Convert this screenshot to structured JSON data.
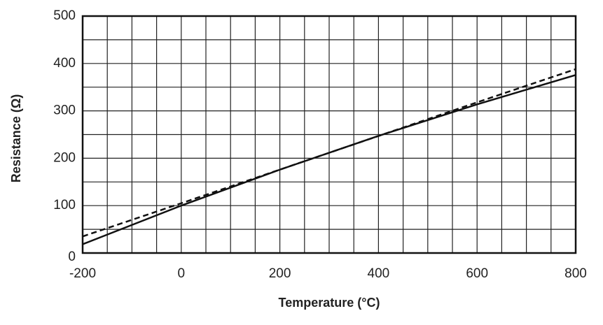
{
  "chart_data": {
    "type": "line",
    "x_label": "Temperature (°C)",
    "y_label": "Resistance (Ω)",
    "x": [
      -200,
      0,
      200,
      400,
      600,
      800
    ],
    "series": [
      {
        "color": "#111111",
        "dashed": false,
        "values": [
          18.5,
          100,
          175.9,
          247.1,
          313.7,
          375.7
        ]
      },
      {
        "color": "#111111",
        "dashed": true,
        "values": [
          35,
          105,
          176,
          247,
          318,
          388
        ]
      }
    ],
    "xlim": [
      -200,
      800
    ],
    "ylim": [
      0,
      500
    ],
    "xticks": [
      -200,
      0,
      200,
      400,
      600,
      800
    ],
    "yticks": [
      0,
      100,
      200,
      300,
      400,
      500
    ],
    "xminorticks": [
      -150,
      -100,
      -50,
      50,
      100,
      150,
      250,
      300,
      350,
      450,
      500,
      550,
      650,
      700,
      750
    ],
    "yminorticks": [
      50,
      150,
      250,
      350,
      450
    ],
    "grid": true
  }
}
